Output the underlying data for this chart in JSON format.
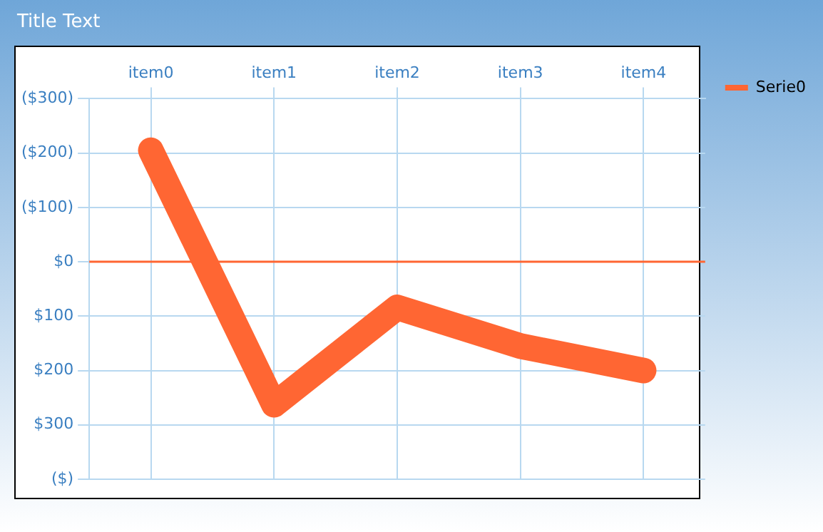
{
  "chart_data": {
    "type": "line",
    "title": "Title Text",
    "categories": [
      "item0",
      "item1",
      "item2",
      "item3",
      "item4"
    ],
    "series": [
      {
        "name": "Serie0",
        "color": "#ff6633",
        "values": [
          -205,
          263,
          84,
          155,
          200
        ]
      }
    ],
    "ylim": [
      400,
      -300
    ],
    "yticks": [
      {
        "value": -300,
        "label": "($300)"
      },
      {
        "value": -200,
        "label": "($200)"
      },
      {
        "value": -100,
        "label": "($100)"
      },
      {
        "value": 0,
        "label": "$0"
      },
      {
        "value": 100,
        "label": "$100"
      },
      {
        "value": 200,
        "label": "$200"
      },
      {
        "value": 300,
        "label": "$300"
      },
      {
        "value": 400,
        "label": "($)"
      }
    ],
    "ref_lines": [
      {
        "axis": "y",
        "value": 0,
        "color": "#ff6633"
      }
    ],
    "grid": true,
    "legend": "top right",
    "marker": "none",
    "line_style": "solid"
  }
}
